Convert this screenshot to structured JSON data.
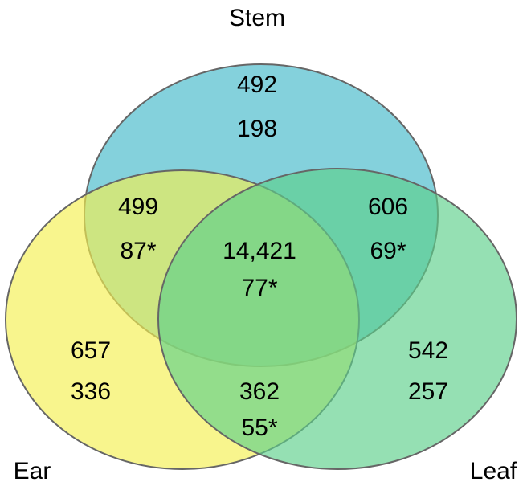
{
  "diagram": {
    "type": "venn",
    "sets": [
      {
        "id": "stem",
        "label": "Stem",
        "color": "#5bc2d0"
      },
      {
        "id": "ear",
        "label": "Ear",
        "color": "#f5f050"
      },
      {
        "id": "leaf",
        "label": "Leaf",
        "color": "#5ccf8a"
      }
    ],
    "outline_color": "#666666",
    "regions": [
      {
        "id": "stem-only",
        "sets": [
          "stem"
        ],
        "values": [
          "492",
          "198"
        ]
      },
      {
        "id": "stem-ear",
        "sets": [
          "stem",
          "ear"
        ],
        "values": [
          "499",
          "87*"
        ]
      },
      {
        "id": "stem-leaf",
        "sets": [
          "stem",
          "leaf"
        ],
        "values": [
          "606",
          "69*"
        ]
      },
      {
        "id": "all",
        "sets": [
          "stem",
          "ear",
          "leaf"
        ],
        "values": [
          "14,421",
          "77*"
        ]
      },
      {
        "id": "ear-only",
        "sets": [
          "ear"
        ],
        "values": [
          "657",
          "336"
        ]
      },
      {
        "id": "leaf-only",
        "sets": [
          "leaf"
        ],
        "values": [
          "542",
          "257"
        ]
      },
      {
        "id": "ear-leaf",
        "sets": [
          "ear",
          "leaf"
        ],
        "values": [
          "362",
          "55*"
        ]
      }
    ]
  }
}
